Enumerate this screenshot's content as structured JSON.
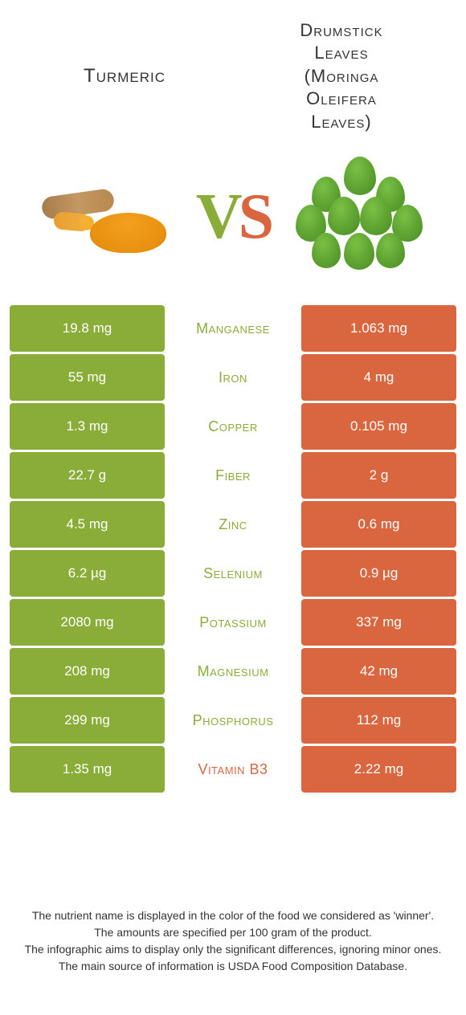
{
  "header": {
    "left_title": "Turmeric",
    "right_title_line1": "Drumstick",
    "right_title_line2": "Leaves",
    "right_subtitle_line1": "(Moringa",
    "right_subtitle_line2": "Oleifera",
    "right_subtitle_line3": "Leaves)"
  },
  "vs": {
    "v": "V",
    "s": "S"
  },
  "colors": {
    "green": "#8aad3a",
    "orange": "#d9663f",
    "background": "#ffffff"
  },
  "rows": [
    {
      "nutrient": "Manganese",
      "left": "19.8 mg",
      "right": "1.063 mg",
      "winner": "left"
    },
    {
      "nutrient": "Iron",
      "left": "55 mg",
      "right": "4 mg",
      "winner": "left"
    },
    {
      "nutrient": "Copper",
      "left": "1.3 mg",
      "right": "0.105 mg",
      "winner": "left"
    },
    {
      "nutrient": "Fiber",
      "left": "22.7 g",
      "right": "2 g",
      "winner": "left"
    },
    {
      "nutrient": "Zinc",
      "left": "4.5 mg",
      "right": "0.6 mg",
      "winner": "left"
    },
    {
      "nutrient": "Selenium",
      "left": "6.2 µg",
      "right": "0.9 µg",
      "winner": "left"
    },
    {
      "nutrient": "Potassium",
      "left": "2080 mg",
      "right": "337 mg",
      "winner": "left"
    },
    {
      "nutrient": "Magnesium",
      "left": "208 mg",
      "right": "42 mg",
      "winner": "left"
    },
    {
      "nutrient": "Phosphorus",
      "left": "299 mg",
      "right": "112 mg",
      "winner": "left"
    },
    {
      "nutrient": "Vitamin B3",
      "left": "1.35 mg",
      "right": "2.22 mg",
      "winner": "right"
    }
  ],
  "footer": {
    "line1": "The nutrient name is displayed in the color of the food we considered as 'winner'.",
    "line2": "The amounts are specified per 100 gram of the product.",
    "line3": "The infographic aims to display only the significant differences, ignoring minor ones.",
    "line4": "The main source of information is USDA Food Composition Database."
  }
}
